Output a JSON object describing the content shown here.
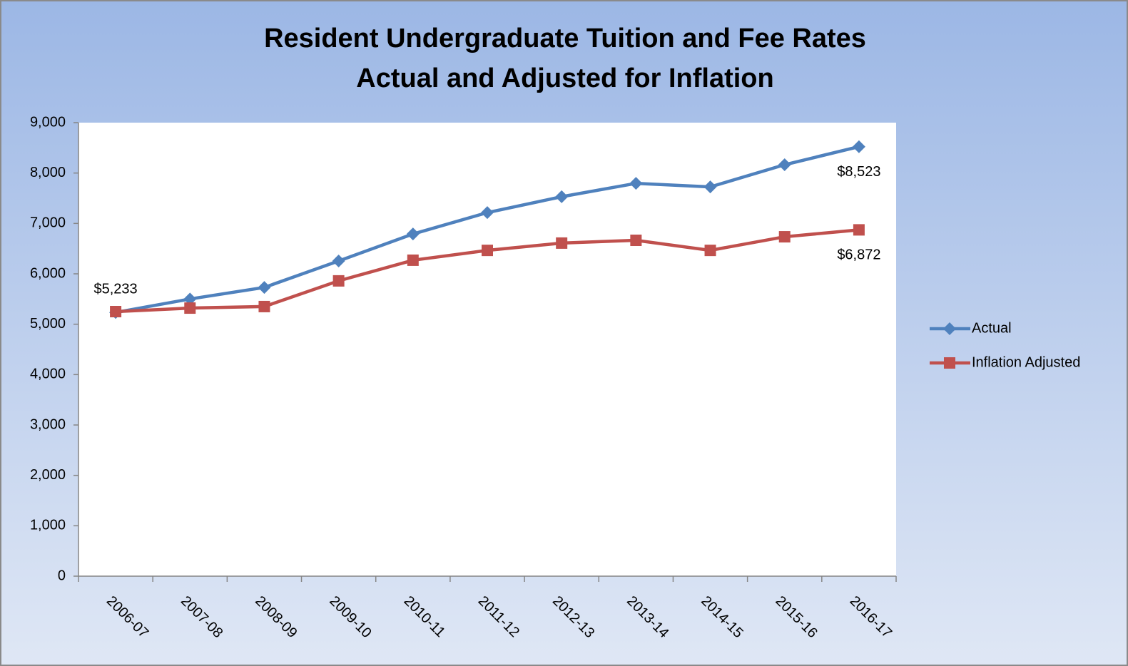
{
  "chart_data": {
    "type": "line",
    "title": [
      "Resident Undergraduate Tuition and Fee Rates",
      "Actual and Adjusted for Inflation"
    ],
    "categories": [
      "2006-07",
      "2007-08",
      "2008-09",
      "2009-10",
      "2010-11",
      "2011-12",
      "2012-13",
      "2013-14",
      "2014-15",
      "2015-16",
      "2016-17"
    ],
    "series": [
      {
        "name": "Actual",
        "color": "#4f81bd",
        "marker": "diamond",
        "values": [
          5233,
          5500,
          5730,
          6255,
          6790,
          7215,
          7530,
          7795,
          7725,
          8165,
          8523
        ],
        "value_labels": [
          "$5,233",
          null,
          null,
          null,
          null,
          null,
          null,
          null,
          null,
          null,
          "$8,523"
        ]
      },
      {
        "name": "Inflation Adjusted",
        "color": "#c0504d",
        "marker": "square",
        "values": [
          5250,
          5320,
          5350,
          5860,
          6270,
          6465,
          6610,
          6665,
          6465,
          6735,
          6872
        ],
        "value_labels": [
          null,
          null,
          null,
          null,
          null,
          null,
          null,
          null,
          null,
          null,
          "$6,872"
        ]
      }
    ],
    "ylim": [
      0,
      9000
    ],
    "yticks": [
      0,
      {
        "value": 1000,
        "label": "1,000"
      },
      {
        "value": 2000,
        "label": "2,000"
      },
      {
        "value": 3000,
        "label": "3,000"
      },
      {
        "value": 4000,
        "label": "4,000"
      },
      {
        "value": 5000,
        "label": "5,000"
      },
      {
        "value": 6000,
        "label": "6,000"
      },
      {
        "value": 7000,
        "label": "7,000"
      },
      {
        "value": 8000,
        "label": "8,000"
      },
      {
        "value": 9000,
        "label": "9,000"
      }
    ],
    "legend": "right"
  }
}
